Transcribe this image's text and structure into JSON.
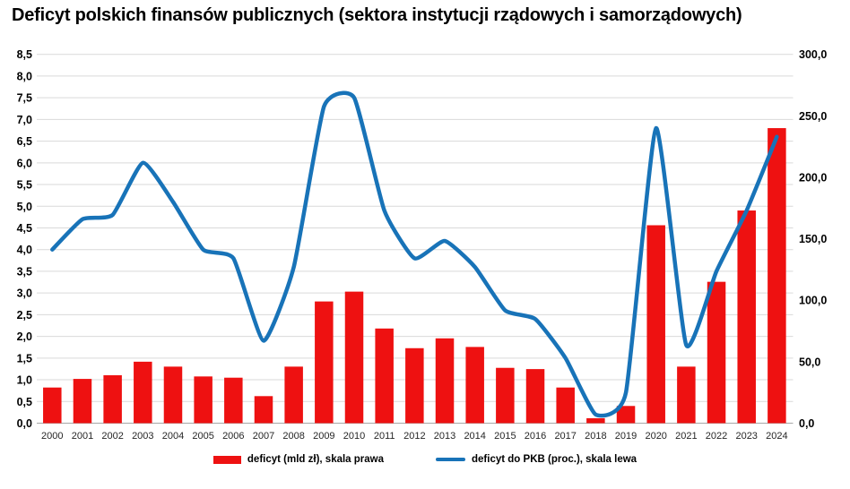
{
  "title": "Deficyt polskich finansów publicznych (sektora instytucji rządowych i samorządowych)",
  "legend": {
    "bars_label": "deficyt (mld zł), skala prawa",
    "line_label": "deficyt do PKB (proc.), skala lewa"
  },
  "colors": {
    "bar": "#ee1111",
    "line": "#1873b8",
    "grid": "#d9d9d9",
    "axis_line": "#a6a6a6",
    "axis_text": "#000000",
    "category_text": "#262626",
    "background": "#ffffff"
  },
  "chart_data": {
    "type": "bar",
    "subtype": "combo bar+smooth-line, dual axis",
    "title": "Deficyt polskich finansów publicznych (sektora instytucji rządowych i samorządowych)",
    "categories": [
      "2000",
      "2001",
      "2002",
      "2003",
      "2004",
      "2005",
      "2006",
      "2007",
      "2008",
      "2009",
      "2010",
      "2011",
      "2012",
      "2013",
      "2014",
      "2015",
      "2016",
      "2017",
      "2018",
      "2019",
      "2020",
      "2021",
      "2022",
      "2023",
      "2024"
    ],
    "series": [
      {
        "name": "deficyt (mld zł), skala prawa",
        "type": "bar",
        "axis": "right",
        "color": "#ee1111",
        "values": [
          29,
          36,
          39,
          50,
          46,
          38,
          37,
          22,
          46,
          99,
          107,
          77,
          61,
          69,
          62,
          45,
          44,
          29,
          4,
          14,
          161,
          46,
          115,
          173,
          240
        ]
      },
      {
        "name": "deficyt do PKB (proc.), skala lewa",
        "type": "line",
        "axis": "left",
        "color": "#1873b8",
        "values": [
          4.0,
          4.7,
          4.8,
          6.0,
          5.1,
          4.0,
          3.8,
          1.9,
          3.6,
          7.3,
          7.5,
          4.9,
          3.8,
          4.2,
          3.6,
          2.6,
          2.4,
          1.5,
          0.2,
          0.7,
          6.8,
          1.8,
          3.5,
          4.9,
          6.6
        ]
      }
    ],
    "left_axis": {
      "min": 0,
      "max": 8.5,
      "step": 0.5,
      "tick_labels": [
        "0,0",
        "0,5",
        "1,0",
        "1,5",
        "2,0",
        "2,5",
        "3,0",
        "3,5",
        "4,0",
        "4,5",
        "5,0",
        "5,5",
        "6,0",
        "6,5",
        "7,0",
        "7,5",
        "8,0",
        "8,5"
      ]
    },
    "right_axis": {
      "min": 0,
      "max": 300,
      "step": 50,
      "tick_labels": [
        "0,0",
        "50,0",
        "100,0",
        "150,0",
        "200,0",
        "250,0",
        "300,0"
      ]
    },
    "grid": true,
    "legend_position": "bottom"
  }
}
